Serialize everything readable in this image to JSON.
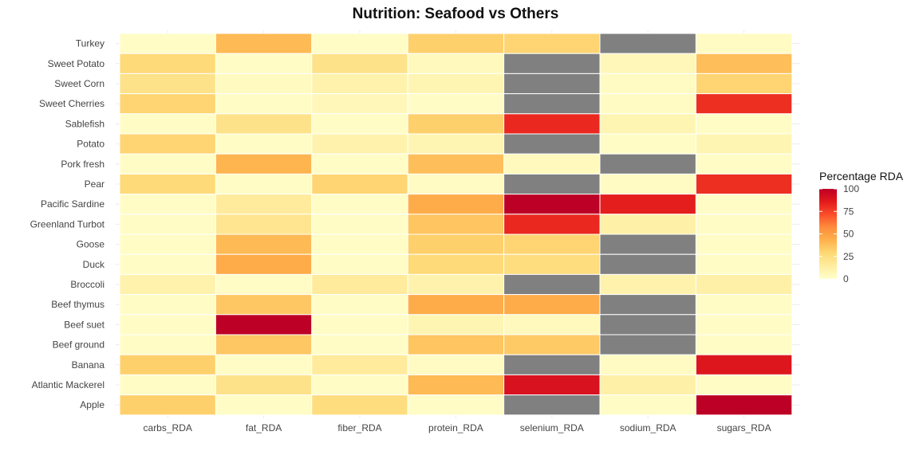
{
  "chart_data": {
    "type": "heatmap",
    "title": "Nutrition: Seafood vs Others",
    "xlabel": "",
    "ylabel": "",
    "x": [
      "carbs_RDA",
      "fat_RDA",
      "fiber_RDA",
      "protein_RDA",
      "selenium_RDA",
      "sodium_RDA",
      "sugars_RDA"
    ],
    "y": [
      "Turkey",
      "Sweet Potato",
      "Sweet Corn",
      "Sweet Cherries",
      "Sablefish",
      "Potato",
      "Pork fresh",
      "Pear",
      "Pacific Sardine",
      "Greenland Turbot",
      "Goose",
      "Duck",
      "Broccoli",
      "Beef thymus",
      "Beef suet",
      "Beef ground",
      "Banana",
      "Atlantic Mackerel",
      "Apple"
    ],
    "values": [
      [
        2,
        40,
        2,
        32,
        30,
        null,
        3
      ],
      [
        28,
        2,
        22,
        5,
        null,
        6,
        38
      ],
      [
        22,
        4,
        10,
        8,
        null,
        3,
        30
      ],
      [
        30,
        2,
        6,
        2,
        null,
        3,
        80
      ],
      [
        2,
        22,
        2,
        32,
        82,
        8,
        2
      ],
      [
        30,
        2,
        10,
        8,
        null,
        2,
        8
      ],
      [
        2,
        42,
        2,
        38,
        5,
        null,
        2
      ],
      [
        28,
        2,
        30,
        3,
        null,
        3,
        80
      ],
      [
        2,
        16,
        2,
        45,
        100,
        85,
        2
      ],
      [
        2,
        20,
        2,
        36,
        82,
        12,
        2
      ],
      [
        2,
        40,
        2,
        32,
        30,
        null,
        2
      ],
      [
        2,
        45,
        2,
        28,
        26,
        null,
        2
      ],
      [
        10,
        2,
        16,
        10,
        null,
        10,
        12
      ],
      [
        2,
        35,
        2,
        45,
        45,
        null,
        2
      ],
      [
        2,
        100,
        2,
        8,
        5,
        null,
        2
      ],
      [
        2,
        35,
        2,
        36,
        34,
        null,
        2
      ],
      [
        32,
        2,
        16,
        3,
        null,
        3,
        88
      ],
      [
        2,
        22,
        2,
        40,
        90,
        12,
        2
      ],
      [
        32,
        2,
        26,
        2,
        null,
        2,
        100
      ]
    ],
    "missing_color": "#808080",
    "legend": {
      "title": "Percentage RDA",
      "position": "right",
      "range": [
        0,
        100
      ],
      "ticks": [
        0,
        25,
        50,
        75,
        100
      ],
      "colors": [
        "#FFFFCC",
        "#FFEDA0",
        "#FED976",
        "#FEB24C",
        "#FD8D3C",
        "#FC4E2A",
        "#E31A1C",
        "#BD0026"
      ]
    },
    "grid": true
  }
}
